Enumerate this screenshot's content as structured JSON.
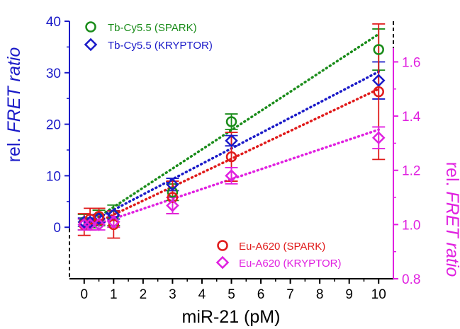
{
  "chart_data": {
    "type": "scatter",
    "xlabel": "miR-21 (pM)",
    "ylabel_left": {
      "plain": "rel. ",
      "italic": "FRET ratio"
    },
    "ylabel_right": {
      "plain": "rel. ",
      "italic": "FRET ratio"
    },
    "xlim": [
      -0.5,
      10.5
    ],
    "ylim_left": [
      -10,
      40
    ],
    "ylim_right": [
      0.8,
      1.75
    ],
    "x_ticks": [
      0,
      1,
      2,
      3,
      4,
      5,
      6,
      7,
      8,
      9,
      10
    ],
    "y_ticks_left": [
      0,
      10,
      20,
      30,
      40
    ],
    "y_ticks_right": [
      0.8,
      1.0,
      1.2,
      1.4,
      1.6
    ],
    "y_ticks_right_labels": [
      "0.8",
      "1.0",
      "1.2",
      "1.4",
      "1.6"
    ],
    "colors": {
      "left_axis": "#1a1ac8",
      "right_axis": "#e020e0",
      "tb_spark": "#1a8c1a",
      "tb_kryptor": "#1a1ac8",
      "eu_spark": "#e01a1a",
      "eu_kryptor": "#e020e0"
    },
    "legend_top": [
      "Tb-Cy5.5 (SPARK)",
      "Tb-Cy5.5 (KRYPTOR)"
    ],
    "legend_bottom": [
      "Eu-A620 (SPARK)",
      "Eu-A620 (KRYPTOR)"
    ],
    "series": [
      {
        "name": "Tb-Cy5.5 (SPARK)",
        "axis": "left",
        "marker": "circle",
        "color_key": "tb_spark",
        "points": [
          {
            "x": 0,
            "y": 1.0,
            "err": 1.5
          },
          {
            "x": 0.2,
            "y": 0.7,
            "err": 0.8
          },
          {
            "x": 0.5,
            "y": 1.8,
            "err": 1.5
          },
          {
            "x": 1,
            "y": 2.3,
            "err": 2.0
          },
          {
            "x": 3,
            "y": 6.8,
            "err": 1.6
          },
          {
            "x": 5,
            "y": 20.5,
            "err": 1.5
          },
          {
            "x": 10,
            "y": 34.5,
            "err": 4.0
          }
        ],
        "fit": [
          [
            0,
            0.2
          ],
          [
            10,
            37.5
          ]
        ]
      },
      {
        "name": "Tb-Cy5.5 (KRYPTOR)",
        "axis": "left",
        "marker": "diamond",
        "color_key": "tb_kryptor",
        "points": [
          {
            "x": 0,
            "y": 1.0,
            "err": 0.8
          },
          {
            "x": 0.2,
            "y": 1.0,
            "err": 0.8
          },
          {
            "x": 0.5,
            "y": 1.7,
            "err": 0.8
          },
          {
            "x": 1,
            "y": 2.4,
            "err": 0.8
          },
          {
            "x": 3,
            "y": 8.3,
            "err": 1.2
          },
          {
            "x": 5,
            "y": 16.8,
            "err": 1.0
          },
          {
            "x": 10,
            "y": 28.5,
            "err": 3.6
          }
        ],
        "fit": [
          [
            0,
            0.4
          ],
          [
            10,
            30.2
          ]
        ]
      },
      {
        "name": "Eu-A620 (SPARK)",
        "axis": "right",
        "marker": "circle",
        "color_key": "eu_spark",
        "points": [
          {
            "x": 0,
            "y": 1.0,
            "err": 0.04
          },
          {
            "x": 0.2,
            "y": 1.02,
            "err": 0.04
          },
          {
            "x": 0.5,
            "y": 1.03,
            "err": 0.03
          },
          {
            "x": 1,
            "y": 1.0,
            "err": 0.05
          },
          {
            "x": 3,
            "y": 1.1,
            "err": 0.06
          },
          {
            "x": 5,
            "y": 1.25,
            "err": 0.09
          },
          {
            "x": 10,
            "y": 1.49,
            "err": 0.25
          }
        ],
        "fit": [
          [
            0,
            0.985
          ],
          [
            10,
            1.5
          ]
        ]
      },
      {
        "name": "Eu-A620 (KRYPTOR)",
        "axis": "right",
        "marker": "diamond",
        "color_key": "eu_kryptor",
        "points": [
          {
            "x": 0,
            "y": 1.0,
            "err": 0.02
          },
          {
            "x": 0.2,
            "y": 1.0,
            "err": 0.02
          },
          {
            "x": 0.5,
            "y": 1.0,
            "err": 0.02
          },
          {
            "x": 1,
            "y": 1.01,
            "err": 0.02
          },
          {
            "x": 3,
            "y": 1.07,
            "err": 0.03
          },
          {
            "x": 5,
            "y": 1.18,
            "err": 0.03
          },
          {
            "x": 10,
            "y": 1.32,
            "err": 0.04
          }
        ],
        "fit": [
          [
            0,
            0.985
          ],
          [
            10,
            1.35
          ]
        ]
      }
    ]
  }
}
